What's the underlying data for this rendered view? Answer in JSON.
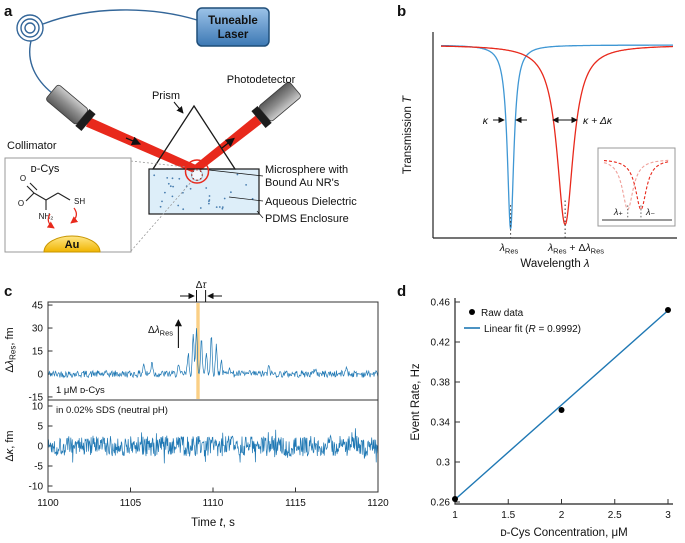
{
  "figure": {
    "panel_labels": [
      "a",
      "b",
      "c",
      "d"
    ]
  },
  "panel_a": {
    "laser_line1": "Tuneable",
    "laser_line2": "Laser",
    "photodetector": "Photodetector",
    "collimator": "Collimator",
    "prism": "Prism",
    "microsphere_line1": "Microsphere with",
    "microsphere_line2": "Bound Au NR's",
    "aqueous": "Aqueous Dielectric",
    "pdms": "PDMS Enclosure",
    "inset_title": "ᴅ-Cys",
    "atom_o1": "O",
    "atom_o2": "O",
    "atom_nh2": "NH₂",
    "atom_sh": "SH",
    "gold": "Au",
    "colors": {
      "beam": "#e8291c",
      "fiber": "#336699",
      "gold": "#f0b400",
      "water": "#ddeef9"
    }
  },
  "panel_b": {
    "ylabel_pre": "Transmission ",
    "ylabel_it": "T",
    "xlabel_pre": "Wavelength ",
    "xlabel_it": "λ",
    "kappa_label": "κ",
    "kappa_dk_label": "κ + Δκ",
    "res_sym": "λ",
    "res_sub": "Res",
    "shift_pre": " + Δ",
    "inset_plus": "λ₊",
    "inset_minus": "λ₋"
  },
  "panel_c": {
    "ylabel_top_pre": "Δ",
    "ylabel_top_it": "λ",
    "ylabel_top_sub": "Res",
    "ylabel_top_post": ", fm",
    "ylabel_bot_pre": "Δ",
    "ylabel_bot_it": "κ",
    "ylabel_bot_post": ", fm",
    "xlabel_pre": "Time ",
    "xlabel_it": "t",
    "xlabel_post": ", s",
    "tau_pre": "Δ",
    "tau_it": "τ",
    "spike_pre": "Δ",
    "spike_it": "λ",
    "spike_sub": "Res",
    "note1": "1 μM ᴅ-Cys",
    "note2": "in 0.02% SDS (neutral pH)"
  },
  "panel_d": {
    "ylabel": "Event Rate, Hz",
    "xlabel": "ᴅ-Cys Concentration, μM",
    "legend_raw": "Raw data",
    "legend_fit_pre": "Linear fit (",
    "legend_fit_it": "R",
    "legend_fit_post": " = 0.9992)"
  },
  "chart_data": [
    {
      "id": "b",
      "type": "line",
      "xlabel": "Wavelength λ",
      "ylabel": "Transmission T",
      "x_range_norm": [
        0,
        1
      ],
      "series": [
        {
          "name": "initial resonance",
          "color": "#3f97d4",
          "center": 0.3,
          "gamma": 0.017,
          "depth": 0.99
        },
        {
          "name": "perturbed resonance (shifted and broadened)",
          "color": "#e8291c",
          "center": 0.535,
          "gamma": 0.043,
          "depth": 0.965
        }
      ],
      "annotations": [
        "κ",
        "κ + Δκ",
        "λRes",
        "λRes + ΔλRes"
      ],
      "inset": {
        "series": [
          {
            "name": "split mode λ+",
            "color": "#f0a09a",
            "center": 0.36,
            "gamma": 0.1,
            "depth": 0.9
          },
          {
            "name": "split mode λ−",
            "color": "#e8291c",
            "center": 0.56,
            "gamma": 0.1,
            "depth": 0.9
          }
        ],
        "labels": [
          "λ₊",
          "λ₋"
        ]
      }
    },
    {
      "id": "c_top",
      "type": "line",
      "ylabel": "ΔλRes, fm",
      "xlim": [
        1100,
        1120
      ],
      "ylim": [
        -17,
        47
      ],
      "yticks": [
        -15,
        0,
        15,
        30,
        45
      ],
      "color": "#1f78b4",
      "noise_amplitude_fm": 2.3,
      "seed": 42,
      "spikes": [
        [
          1105.8,
          7
        ],
        [
          1106.3,
          9
        ],
        [
          1107.9,
          5
        ],
        [
          1108.5,
          13
        ],
        [
          1108.8,
          24
        ],
        [
          1109.0,
          31
        ],
        [
          1109.3,
          22
        ],
        [
          1109.6,
          14
        ],
        [
          1109.9,
          25
        ],
        [
          1110.2,
          18
        ],
        [
          1110.5,
          9
        ],
        [
          1111.0,
          6
        ],
        [
          1113.4,
          5
        ],
        [
          1116.2,
          4
        ],
        [
          1118.1,
          5
        ]
      ],
      "event_marker_time_s": 1109.0,
      "tau_window_s": [
        1109.0,
        1109.55
      ],
      "band_color": "#f6a821"
    },
    {
      "id": "c_bottom",
      "type": "line",
      "ylabel": "Δκ, fm",
      "xlabel": "Time t, s",
      "xlim": [
        1100,
        1120
      ],
      "ylim": [
        -11.5,
        11.5
      ],
      "yticks": [
        -10,
        -5,
        0,
        5,
        10
      ],
      "xticks": [
        1100,
        1105,
        1110,
        1115,
        1120
      ],
      "color": "#1f78b4",
      "noise_amplitude_fm": 2.6,
      "seed": 1337
    },
    {
      "id": "d",
      "type": "scatter",
      "xlabel": "ᴅ-Cys Concentration, μM",
      "ylabel": "Event Rate, Hz",
      "xlim": [
        1,
        3
      ],
      "ylim": [
        0.26,
        0.46
      ],
      "xticks": [
        1,
        1.5,
        2,
        2.5,
        3
      ],
      "yticks": [
        0.26,
        0.3,
        0.34,
        0.38,
        0.42,
        0.46
      ],
      "points": [
        [
          1,
          0.263
        ],
        [
          2,
          0.352
        ],
        [
          3,
          0.452
        ]
      ],
      "fit": {
        "slope": 0.0945,
        "intercept": 0.168,
        "r": 0.9992
      },
      "colors": {
        "points": "#000000",
        "fit": "#1f78b4"
      },
      "legend": [
        "Raw data",
        "Linear fit (R = 0.9992)"
      ]
    }
  ]
}
